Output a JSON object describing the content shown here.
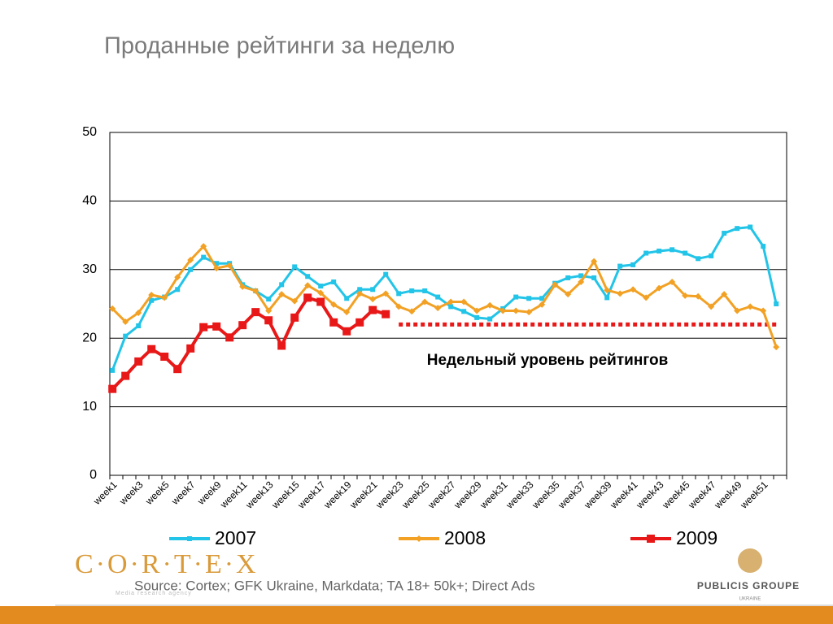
{
  "chart_data": {
    "type": "line",
    "title": "Проданные рейтинги за неделю",
    "categories": [
      "week1",
      null,
      "week3",
      null,
      "week5",
      null,
      "week7",
      null,
      "week9",
      null,
      "week11",
      null,
      "week13",
      null,
      "week15",
      null,
      "week17",
      null,
      "week19",
      null,
      "week21",
      null,
      "week23",
      null,
      "week25",
      null,
      "week27",
      null,
      "week29",
      null,
      "week31",
      null,
      "week33",
      null,
      "week35",
      null,
      "week37",
      null,
      "week39",
      null,
      "week41",
      null,
      "week43",
      null,
      "week45",
      null,
      "week47",
      null,
      "week49",
      null,
      "week51",
      null
    ],
    "series": [
      {
        "name": "2007",
        "color": "#22c4e8",
        "marker": "square",
        "values": [
          15.3,
          20.3,
          21.8,
          25.5,
          26,
          27.1,
          30,
          31.8,
          30.9,
          30.9,
          27.8,
          26.9,
          25.7,
          27.8,
          30.4,
          29,
          27.6,
          28.2,
          25.8,
          27.1,
          27.1,
          29.3,
          26.5,
          26.9,
          26.9,
          26,
          24.6,
          23.9,
          23,
          22.8,
          24.3,
          26,
          25.8,
          25.8,
          28,
          28.8,
          29.1,
          28.8,
          25.9,
          30.5,
          30.7,
          32.4,
          32.7,
          32.9,
          32.4,
          31.6,
          32,
          35.3,
          36,
          36.2,
          33.4,
          25
        ]
      },
      {
        "name": "2008",
        "color": "#f2a124",
        "marker": "diamond",
        "values": [
          24.3,
          22.4,
          23.7,
          26.3,
          25.9,
          28.9,
          31.4,
          33.4,
          30.2,
          30.6,
          27.5,
          26.9,
          24,
          26.4,
          25.4,
          27.7,
          26.6,
          24.9,
          23.8,
          26.5,
          25.7,
          26.5,
          24.6,
          23.9,
          25.3,
          24.4,
          25.3,
          25.3,
          24,
          24.8,
          24,
          24,
          23.8,
          24.9,
          27.8,
          26.4,
          28.2,
          31.2,
          27,
          26.5,
          27.1,
          25.9,
          27.3,
          28.2,
          26.2,
          26.1,
          24.6,
          26.4,
          24,
          24.6,
          24,
          18.7
        ]
      },
      {
        "name": "2009",
        "color": "#e81818",
        "marker": "bigsquare",
        "values": [
          12.6,
          14.5,
          16.6,
          18.4,
          17.3,
          15.5,
          18.5,
          21.6,
          21.7,
          20.1,
          21.9,
          23.8,
          22.6,
          18.9,
          23,
          25.9,
          25.3,
          22.3,
          21,
          22.3,
          24.1,
          23.5,
          null,
          null,
          null,
          null,
          null,
          null,
          null,
          null,
          null,
          null,
          null,
          null,
          null,
          null,
          null,
          null,
          null,
          null,
          null,
          null,
          null,
          null,
          null,
          null,
          null,
          null,
          null,
          null,
          null,
          null
        ]
      }
    ],
    "reference": {
      "label": "Недельный уровень рейтингов",
      "value": 22,
      "start": "week23",
      "color": "#e81818"
    },
    "ylim": [
      0,
      50
    ],
    "yticks": [
      0,
      10,
      20,
      30,
      40,
      50
    ],
    "grid": true
  },
  "footer": {
    "source": "Source: Cortex; GFK Ukraine, Markdata; TA 18+ 50k+; Direct Ads",
    "logo_left": "C·O·R·T·E·X",
    "logo_left_sub": "Media research agency",
    "logo_right": "PUBLICIS GROUPE",
    "logo_right_sub": "UKRAINE"
  }
}
